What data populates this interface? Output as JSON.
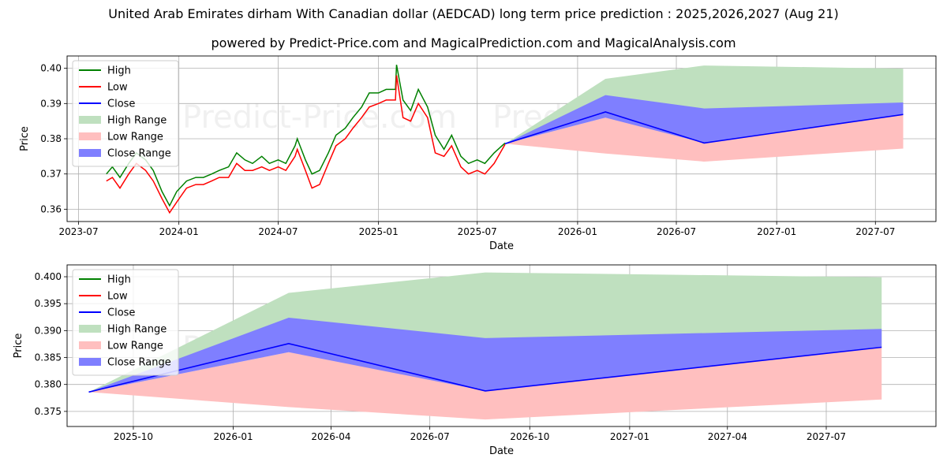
{
  "title": "United Arab Emirates dirham With Canadian dollar (AEDCAD) long term price prediction : 2025,2026,2027 (Aug 21)",
  "subtitle": "powered by Predict-Price.com and MagicalPrediction.com and MagicalAnalysis.com",
  "watermark": "Predict-Price.com",
  "colors": {
    "high": "#008000",
    "low": "#ff0000",
    "close": "#0000ff",
    "high_range": "#bfe0bf",
    "low_range": "#ffbfbf",
    "close_range": "#7f7fff"
  },
  "chart_data": [
    {
      "type": "line",
      "xlabel": "Date",
      "ylabel": "Price",
      "x_range": [
        "2023-06-10",
        "2027-10-20"
      ],
      "ylim": [
        0.3565,
        0.4035
      ],
      "grid": true,
      "legend_position": "top-left",
      "x_ticks": [
        {
          "date": "2023-07-01",
          "label": "2023-07"
        },
        {
          "date": "2024-01-01",
          "label": "2024-01"
        },
        {
          "date": "2024-07-01",
          "label": "2024-07"
        },
        {
          "date": "2025-01-01",
          "label": "2025-01"
        },
        {
          "date": "2025-07-01",
          "label": "2025-07"
        },
        {
          "date": "2026-01-01",
          "label": "2026-01"
        },
        {
          "date": "2026-07-01",
          "label": "2026-07"
        },
        {
          "date": "2027-01-01",
          "label": "2027-01"
        },
        {
          "date": "2027-07-01",
          "label": "2027-07"
        }
      ],
      "y_ticks": [
        {
          "value": 0.36,
          "label": "0.36"
        },
        {
          "value": 0.37,
          "label": "0.37"
        },
        {
          "value": 0.38,
          "label": "0.38"
        },
        {
          "value": 0.39,
          "label": "0.39"
        },
        {
          "value": 0.4,
          "label": "0.40"
        }
      ],
      "legend": [
        "High",
        "Low",
        "Close",
        "High Range",
        "Low Range",
        "Close Range"
      ],
      "history": {
        "x": [
          "2023-08-21",
          "2023-09-01",
          "2023-09-15",
          "2023-10-01",
          "2023-10-15",
          "2023-11-01",
          "2023-11-15",
          "2023-12-01",
          "2023-12-15",
          "2023-12-28",
          "2024-01-15",
          "2024-02-01",
          "2024-02-15",
          "2024-03-01",
          "2024-03-15",
          "2024-04-01",
          "2024-04-16",
          "2024-05-01",
          "2024-05-15",
          "2024-06-01",
          "2024-06-15",
          "2024-07-01",
          "2024-07-15",
          "2024-08-01",
          "2024-08-05",
          "2024-08-20",
          "2024-09-01",
          "2024-09-15",
          "2024-10-01",
          "2024-10-15",
          "2024-11-01",
          "2024-11-15",
          "2024-12-01",
          "2024-12-15",
          "2025-01-01",
          "2025-01-15",
          "2025-02-01",
          "2025-02-03",
          "2025-02-15",
          "2025-03-01",
          "2025-03-15",
          "2025-04-01",
          "2025-04-15",
          "2025-05-01",
          "2025-05-15",
          "2025-06-01",
          "2025-06-15",
          "2025-07-01",
          "2025-07-15",
          "2025-08-01",
          "2025-08-21"
        ],
        "close": [
          0.369,
          0.371,
          0.367,
          0.372,
          0.375,
          0.373,
          0.37,
          0.364,
          0.36,
          0.364,
          0.367,
          0.368,
          0.368,
          0.369,
          0.37,
          0.37,
          0.375,
          0.373,
          0.372,
          0.374,
          0.372,
          0.373,
          0.372,
          0.376,
          0.378,
          0.372,
          0.368,
          0.369,
          0.374,
          0.379,
          0.381,
          0.384,
          0.388,
          0.391,
          0.392,
          0.392,
          0.393,
          0.4,
          0.389,
          0.387,
          0.392,
          0.388,
          0.378,
          0.376,
          0.38,
          0.374,
          0.372,
          0.373,
          0.372,
          0.375,
          0.3786
        ],
        "high": [
          0.37,
          0.372,
          0.369,
          0.373,
          0.376,
          0.374,
          0.371,
          0.365,
          0.361,
          0.365,
          0.368,
          0.369,
          0.369,
          0.37,
          0.371,
          0.372,
          0.376,
          0.374,
          0.373,
          0.375,
          0.373,
          0.374,
          0.373,
          0.378,
          0.38,
          0.374,
          0.37,
          0.371,
          0.376,
          0.381,
          0.383,
          0.386,
          0.389,
          0.393,
          0.393,
          0.394,
          0.394,
          0.401,
          0.391,
          0.388,
          0.394,
          0.389,
          0.381,
          0.377,
          0.381,
          0.375,
          0.373,
          0.374,
          0.373,
          0.376,
          0.3788
        ],
        "low": [
          0.368,
          0.369,
          0.366,
          0.37,
          0.373,
          0.371,
          0.368,
          0.363,
          0.359,
          0.362,
          0.366,
          0.367,
          0.367,
          0.368,
          0.369,
          0.369,
          0.373,
          0.371,
          0.371,
          0.372,
          0.371,
          0.372,
          0.371,
          0.375,
          0.377,
          0.371,
          0.366,
          0.367,
          0.373,
          0.378,
          0.38,
          0.383,
          0.386,
          0.389,
          0.39,
          0.391,
          0.391,
          0.398,
          0.386,
          0.385,
          0.39,
          0.386,
          0.376,
          0.375,
          0.378,
          0.372,
          0.37,
          0.371,
          0.37,
          0.373,
          0.3784
        ]
      },
      "forecast": {
        "x": [
          "2025-08-21",
          "2026-02-21",
          "2026-08-21",
          "2027-08-21"
        ],
        "close": [
          0.3786,
          0.3876,
          0.3788,
          0.3869
        ],
        "high_range": {
          "upper": [
            0.3786,
            0.397,
            0.4008,
            0.3999
          ],
          "lower": [
            0.3786,
            0.3876,
            0.3788,
            0.3869
          ]
        },
        "low_range": {
          "upper": [
            0.3786,
            0.386,
            0.38,
            0.3869
          ],
          "lower": [
            0.3786,
            0.3758,
            0.3735,
            0.3772
          ]
        },
        "close_range": {
          "upper": [
            0.3786,
            0.3924,
            0.3886,
            0.3903
          ],
          "lower": [
            0.3786,
            0.386,
            0.3788,
            0.3869
          ]
        }
      }
    },
    {
      "type": "line",
      "xlabel": "Date",
      "ylabel": "Price",
      "x_range": [
        "2025-08-01",
        "2027-10-10"
      ],
      "ylim": [
        0.3722,
        0.4022
      ],
      "grid": true,
      "legend_position": "top-left",
      "x_ticks": [
        {
          "date": "2025-10-01",
          "label": "2025-10"
        },
        {
          "date": "2026-01-01",
          "label": "2026-01"
        },
        {
          "date": "2026-04-01",
          "label": "2026-04"
        },
        {
          "date": "2026-07-01",
          "label": "2026-07"
        },
        {
          "date": "2026-10-01",
          "label": "2026-10"
        },
        {
          "date": "2027-01-01",
          "label": "2027-01"
        },
        {
          "date": "2027-04-01",
          "label": "2027-04"
        },
        {
          "date": "2027-07-01",
          "label": "2027-07"
        }
      ],
      "y_ticks": [
        {
          "value": 0.375,
          "label": "0.375"
        },
        {
          "value": 0.38,
          "label": "0.380"
        },
        {
          "value": 0.385,
          "label": "0.385"
        },
        {
          "value": 0.39,
          "label": "0.390"
        },
        {
          "value": 0.395,
          "label": "0.395"
        },
        {
          "value": 0.4,
          "label": "0.400"
        }
      ],
      "legend": [
        "High",
        "Low",
        "Close",
        "High Range",
        "Low Range",
        "Close Range"
      ],
      "forecast": {
        "x": [
          "2025-08-21",
          "2026-02-21",
          "2026-08-21",
          "2027-08-21"
        ],
        "close": [
          0.3786,
          0.3876,
          0.3788,
          0.3869
        ],
        "high_range": {
          "upper": [
            0.3786,
            0.397,
            0.4008,
            0.3999
          ],
          "lower": [
            0.3786,
            0.3876,
            0.3788,
            0.3869
          ]
        },
        "low_range": {
          "upper": [
            0.3786,
            0.386,
            0.38,
            0.3869
          ],
          "lower": [
            0.3786,
            0.3758,
            0.3735,
            0.3772
          ]
        },
        "close_range": {
          "upper": [
            0.3786,
            0.3924,
            0.3886,
            0.3903
          ],
          "lower": [
            0.3786,
            0.386,
            0.3788,
            0.3869
          ]
        }
      }
    }
  ]
}
